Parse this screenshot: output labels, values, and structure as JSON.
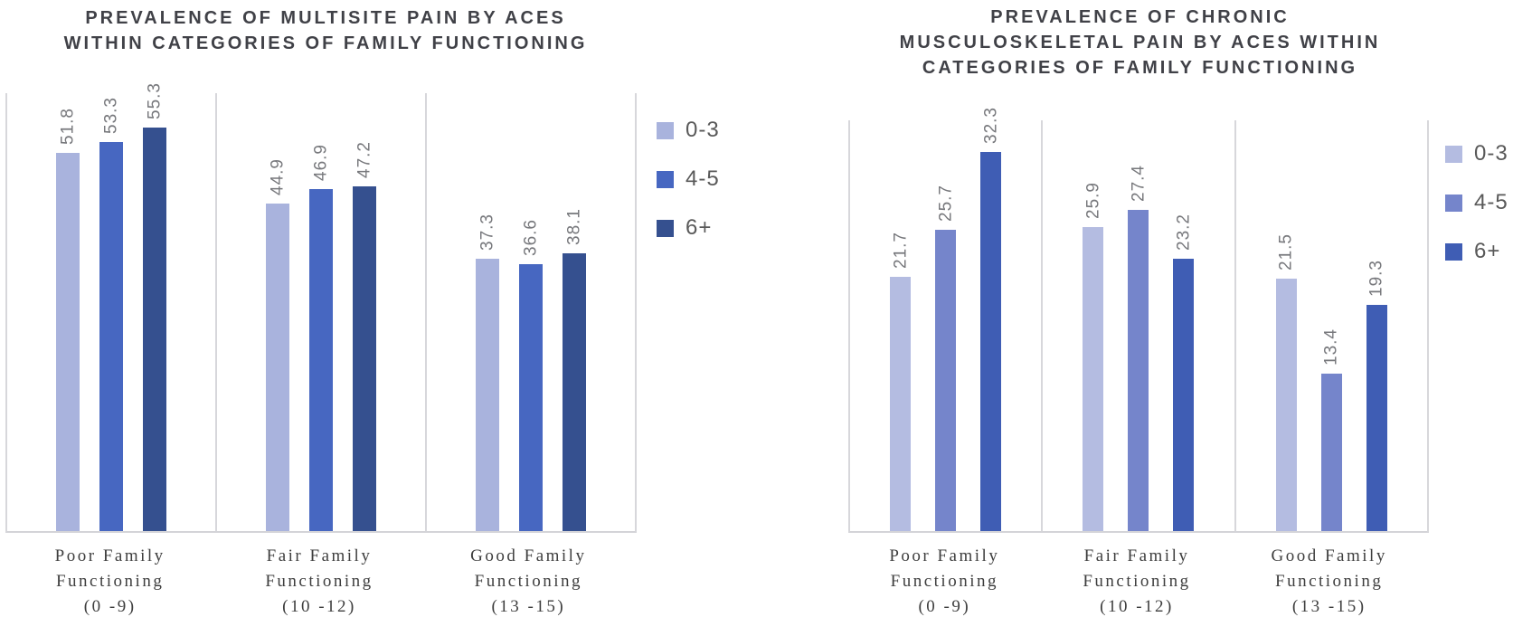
{
  "figure": {
    "background": "#ffffff",
    "title_color": "#404147",
    "axis_line_color": "#d7d7db",
    "data_label_color": "#77787c",
    "category_label_color": "#3e3e3e",
    "legend_label_color": "#595959"
  },
  "chart_data": [
    {
      "type": "bar",
      "title": "PREVALENCE OF MULTISITE PAIN BY ACES WITHIN CATEGORIES OF FAMILY FUNCTIONING",
      "title_lines": [
        "PREVALENCE OF MULTISITE PAIN BY ACES",
        "WITHIN CATEGORIES OF FAMILY FUNCTIONING"
      ],
      "categories": [
        {
          "label": "Poor Family Functioning (0 -9)",
          "lines": [
            "Poor Family",
            "Functioning",
            "(0 -9)"
          ]
        },
        {
          "label": "Fair Family Functioning (10 -12)",
          "lines": [
            "Fair Family",
            "Functioning",
            "(10 -12)"
          ]
        },
        {
          "label": "Good Family Functioning (13 -15)",
          "lines": [
            "Good Family",
            "Functioning",
            "(13 -15)"
          ]
        }
      ],
      "series": [
        {
          "name": "0-3",
          "color": "#a9b3dd",
          "values": [
            51.8,
            44.9,
            37.3
          ]
        },
        {
          "name": "4-5",
          "color": "#4767c1",
          "values": [
            53.3,
            46.9,
            36.6
          ]
        },
        {
          "name": "6+",
          "color": "#35508f",
          "values": [
            55.3,
            47.2,
            38.1
          ]
        }
      ],
      "ylim": [
        0,
        60
      ],
      "grid": false,
      "legend_position": "right",
      "data_labels": "rotated-vertical",
      "xlabel": "",
      "ylabel": ""
    },
    {
      "type": "bar",
      "title": "PREVALENCE OF CHRONIC MUSCULOSKELETAL PAIN BY ACES WITHIN CATEGORIES OF FAMILY FUNCTIONING",
      "title_lines": [
        "PREVALENCE OF CHRONIC",
        "MUSCULOSKELETAL PAIN BY ACES WITHIN",
        "CATEGORIES OF FAMILY FUNCTIONING"
      ],
      "categories": [
        {
          "label": "Poor Family Functioning (0 -9)",
          "lines": [
            "Poor Family",
            "Functioning",
            "(0 -9)"
          ]
        },
        {
          "label": "Fair Family Functioning (10 -12)",
          "lines": [
            "Fair Family",
            "Functioning",
            "(10 -12)"
          ]
        },
        {
          "label": "Good Family Functioning (13 -15)",
          "lines": [
            "Good Family",
            "Functioning",
            "(13 -15)"
          ]
        }
      ],
      "series": [
        {
          "name": "0-3",
          "color": "#b4bce1",
          "values": [
            21.7,
            25.9,
            21.5
          ]
        },
        {
          "name": "4-5",
          "color": "#7585cb",
          "values": [
            25.7,
            27.4,
            13.4
          ]
        },
        {
          "name": "6+",
          "color": "#3f5db4",
          "values": [
            32.3,
            23.2,
            19.3
          ]
        }
      ],
      "ylim": [
        0,
        35
      ],
      "grid": false,
      "legend_position": "right",
      "data_labels": "rotated-vertical",
      "xlabel": "",
      "ylabel": ""
    }
  ]
}
